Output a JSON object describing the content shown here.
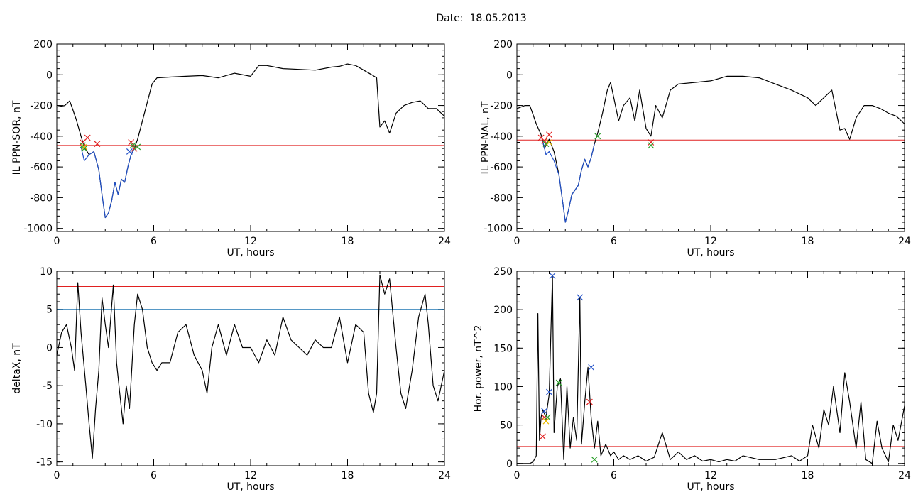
{
  "title": "Date:  18.05.2013",
  "chart_data": [
    {
      "type": "line",
      "ylabel": "IL PPN-SOR, nT",
      "xlabel": "UT, hours",
      "xlim": [
        0,
        24
      ],
      "ylim": [
        -1020,
        200
      ],
      "xticks": [
        0,
        6,
        12,
        18,
        24
      ],
      "yticks": [
        -1000,
        -800,
        -600,
        -400,
        -200,
        0,
        200
      ],
      "xtick_labels": [
        "0",
        "6",
        "12",
        "18",
        "24"
      ],
      "ytick_labels": [
        "-1000",
        "-800",
        "-600",
        "-400",
        "-200",
        "0",
        "200"
      ],
      "threshold": {
        "value": -460,
        "color": "#e02020"
      },
      "series": [
        {
          "color": "#000000",
          "x": [
            0,
            0.5,
            0.8,
            1.0,
            1.2,
            1.5,
            1.7,
            2.0,
            2.3,
            2.6,
            2.8,
            3.0,
            3.2,
            3.4,
            3.6,
            3.8,
            4.0,
            4.2,
            4.4,
            4.6,
            4.8,
            5.0,
            5.3,
            5.6,
            5.9,
            6.2,
            7.0,
            8.0,
            9.0,
            10.0,
            11.0,
            12.0,
            12.5,
            13.0,
            14.0,
            15.0,
            16.0,
            17.0,
            17.5,
            18.0,
            18.5,
            19.0,
            19.5,
            19.8,
            20.0,
            20.3,
            20.6,
            21.0,
            21.5,
            22.0,
            22.5,
            23.0,
            23.5,
            24.0
          ],
          "y": [
            -210,
            -200,
            -170,
            -230,
            -290,
            -400,
            -470,
            -520,
            -500,
            -620,
            -780,
            -930,
            -900,
            -820,
            -700,
            -780,
            -680,
            -700,
            -600,
            -520,
            -480,
            -420,
            -300,
            -180,
            -60,
            -20,
            -15,
            -10,
            -5,
            -20,
            10,
            -10,
            60,
            60,
            40,
            35,
            30,
            50,
            55,
            70,
            60,
            30,
            0,
            -20,
            -340,
            -300,
            -380,
            -250,
            -200,
            -180,
            -170,
            -220,
            -220,
            -270
          ]
        },
        {
          "color": "#2050c8",
          "x": [
            1.5,
            1.7,
            2.0,
            2.3,
            2.6,
            2.8,
            3.0,
            3.2,
            3.4,
            3.6,
            3.8,
            4.0,
            4.2,
            4.4,
            4.6,
            4.8
          ],
          "y": [
            -470,
            -560,
            -520,
            -500,
            -620,
            -780,
            -930,
            -900,
            -820,
            -700,
            -780,
            -680,
            -700,
            -600,
            -520,
            -480
          ]
        }
      ],
      "markers": [
        {
          "x": 1.6,
          "y": -440,
          "color": "#e02020"
        },
        {
          "x": 1.9,
          "y": -410,
          "color": "#e02020"
        },
        {
          "x": 2.5,
          "y": -450,
          "color": "#e02020"
        },
        {
          "x": 4.6,
          "y": -440,
          "color": "#e02020"
        },
        {
          "x": 4.8,
          "y": -480,
          "color": "#e02020"
        },
        {
          "x": 1.7,
          "y": -480,
          "color": "#2ca02c"
        },
        {
          "x": 1.6,
          "y": -460,
          "color": "#2ca02c"
        },
        {
          "x": 4.7,
          "y": -460,
          "color": "#2ca02c"
        },
        {
          "x": 5.0,
          "y": -470,
          "color": "#2ca02c"
        },
        {
          "x": 4.5,
          "y": -500,
          "color": "#2050c8"
        },
        {
          "x": 1.7,
          "y": -470,
          "color": "#e6b800"
        }
      ]
    },
    {
      "type": "line",
      "ylabel": "IL PPN-NAL, nT",
      "xlabel": "UT, hours",
      "xlim": [
        0,
        24
      ],
      "ylim": [
        -1020,
        200
      ],
      "xticks": [
        0,
        6,
        12,
        18,
        24
      ],
      "yticks": [
        -1000,
        -800,
        -600,
        -400,
        -200,
        0,
        200
      ],
      "xtick_labels": [
        "0",
        "6",
        "12",
        "18",
        "24"
      ],
      "ytick_labels": [
        "-1000",
        "-800",
        "-600",
        "-400",
        "-200",
        "0",
        "200"
      ],
      "threshold": {
        "value": -425,
        "color": "#e02020"
      },
      "series": [
        {
          "color": "#000000",
          "x": [
            0,
            0.5,
            0.8,
            1.0,
            1.2,
            1.5,
            1.7,
            2.0,
            2.3,
            2.6,
            2.8,
            3.0,
            3.2,
            3.4,
            3.6,
            3.8,
            4.0,
            4.2,
            4.4,
            4.6,
            4.8,
            5.0,
            5.3,
            5.6,
            5.8,
            6.0,
            6.3,
            6.6,
            7.0,
            7.3,
            7.6,
            8.0,
            8.3,
            8.6,
            9.0,
            9.5,
            10.0,
            11.0,
            12.0,
            13.0,
            14.0,
            15.0,
            16.0,
            17.0,
            18.0,
            18.5,
            19.0,
            19.5,
            20.0,
            20.3,
            20.6,
            21.0,
            21.5,
            22.0,
            22.5,
            23.0,
            23.5,
            24.0
          ],
          "y": [
            -220,
            -200,
            -200,
            -260,
            -320,
            -390,
            -480,
            -420,
            -500,
            -650,
            -800,
            -960,
            -880,
            -780,
            -750,
            -720,
            -620,
            -550,
            -600,
            -540,
            -450,
            -380,
            -250,
            -100,
            -50,
            -150,
            -300,
            -200,
            -150,
            -300,
            -100,
            -350,
            -400,
            -200,
            -280,
            -100,
            -60,
            -50,
            -40,
            -10,
            -10,
            -20,
            -60,
            -100,
            -150,
            -200,
            -150,
            -100,
            -360,
            -350,
            -420,
            -280,
            -200,
            -200,
            -220,
            -250,
            -270,
            -320
          ]
        },
        {
          "color": "#2050c8",
          "x": [
            1.6,
            1.8,
            2.0,
            2.3,
            2.6,
            2.8,
            3.0,
            3.2,
            3.4,
            3.6,
            3.8,
            4.0,
            4.2,
            4.4,
            4.6,
            4.8
          ],
          "y": [
            -430,
            -520,
            -500,
            -560,
            -650,
            -800,
            -960,
            -880,
            -780,
            -750,
            -720,
            -620,
            -550,
            -600,
            -540,
            -450
          ]
        }
      ],
      "markers": [
        {
          "x": 1.5,
          "y": -410,
          "color": "#e02020"
        },
        {
          "x": 2.0,
          "y": -390,
          "color": "#e02020"
        },
        {
          "x": 1.7,
          "y": -430,
          "color": "#e02020"
        },
        {
          "x": 8.3,
          "y": -440,
          "color": "#e02020"
        },
        {
          "x": 1.8,
          "y": -450,
          "color": "#2ca02c"
        },
        {
          "x": 5.0,
          "y": -400,
          "color": "#2ca02c"
        },
        {
          "x": 8.3,
          "y": -460,
          "color": "#2ca02c"
        },
        {
          "x": 2.0,
          "y": -440,
          "color": "#e6b800"
        }
      ]
    },
    {
      "type": "line",
      "ylabel": "deltaX, nT",
      "xlabel": "UT, hours",
      "xlim": [
        0,
        24
      ],
      "ylim": [
        -15.5,
        10
      ],
      "xticks": [
        0,
        6,
        12,
        18,
        24
      ],
      "yticks": [
        -15,
        -10,
        -5,
        0,
        5,
        10
      ],
      "xtick_labels": [
        "0",
        "6",
        "12",
        "18",
        "24"
      ],
      "ytick_labels": [
        "-15",
        "-10",
        "-5",
        "0",
        "5",
        "10"
      ],
      "thresholds": [
        {
          "value": 8,
          "color": "#e02020"
        },
        {
          "value": 5,
          "color": "#1f77b4"
        }
      ],
      "series": [
        {
          "color": "#000000",
          "x": [
            0,
            0.3,
            0.6,
            0.9,
            1.1,
            1.3,
            1.5,
            1.8,
            2.0,
            2.2,
            2.4,
            2.6,
            2.8,
            3.0,
            3.2,
            3.5,
            3.7,
            3.9,
            4.1,
            4.3,
            4.5,
            4.8,
            5.0,
            5.3,
            5.6,
            5.9,
            6.2,
            6.5,
            7.0,
            7.5,
            8.0,
            8.5,
            9.0,
            9.3,
            9.6,
            10.0,
            10.5,
            11.0,
            11.5,
            12.0,
            12.5,
            13.0,
            13.5,
            14.0,
            14.5,
            15.0,
            15.5,
            16.0,
            16.5,
            17.0,
            17.5,
            18.0,
            18.5,
            19.0,
            19.3,
            19.6,
            19.8,
            20.0,
            20.3,
            20.6,
            21.0,
            21.3,
            21.6,
            22.0,
            22.4,
            22.8,
            23.0,
            23.3,
            23.6,
            24.0
          ],
          "y": [
            -1,
            2,
            3,
            0,
            -3,
            8.5,
            2,
            -5,
            -10,
            -14.5,
            -8,
            -3,
            6.5,
            3,
            0,
            8.2,
            -2,
            -6,
            -10,
            -5,
            -8,
            3,
            7,
            5,
            0,
            -2,
            -3,
            -2,
            -2,
            2,
            3,
            -1,
            -3,
            -6,
            0,
            3,
            -1,
            3,
            0,
            0,
            -2,
            1,
            -1,
            4,
            1,
            0,
            -1,
            1,
            0,
            0,
            4,
            -2,
            3,
            2,
            -6,
            -8.5,
            -6,
            9.5,
            7,
            9,
            0,
            -6,
            -8,
            -3,
            4,
            7,
            3,
            -5,
            -7,
            -3
          ]
        }
      ]
    },
    {
      "type": "line",
      "ylabel": "Hor. power, nT^2",
      "xlabel": "UT, hours",
      "xlim": [
        0,
        24
      ],
      "ylim": [
        -3,
        250
      ],
      "xticks": [
        0,
        6,
        12,
        18,
        24
      ],
      "yticks": [
        0,
        50,
        100,
        150,
        200,
        250
      ],
      "xtick_labels": [
        "0",
        "6",
        "12",
        "18",
        "24"
      ],
      "ytick_labels": [
        "0",
        "50",
        "100",
        "150",
        "200",
        "250"
      ],
      "threshold": {
        "value": 22,
        "color": "#e02020"
      },
      "series": [
        {
          "color": "#000000",
          "x": [
            0,
            0.8,
            1.0,
            1.2,
            1.3,
            1.4,
            1.5,
            1.6,
            1.8,
            2.0,
            2.2,
            2.3,
            2.5,
            2.7,
            2.9,
            3.1,
            3.3,
            3.5,
            3.7,
            3.9,
            4.0,
            4.2,
            4.4,
            4.6,
            4.8,
            5.0,
            5.2,
            5.5,
            5.8,
            6.0,
            6.3,
            6.6,
            7.0,
            7.5,
            8.0,
            8.5,
            9.0,
            9.5,
            10.0,
            10.5,
            11.0,
            11.5,
            12.0,
            12.5,
            13.0,
            13.5,
            14.0,
            15.0,
            16.0,
            17.0,
            17.5,
            18.0,
            18.3,
            18.7,
            19.0,
            19.3,
            19.6,
            20.0,
            20.3,
            20.6,
            21.0,
            21.3,
            21.6,
            22.0,
            22.3,
            22.6,
            23.0,
            23.3,
            23.6,
            24.0
          ],
          "y": [
            0,
            0,
            2,
            10,
            195,
            30,
            60,
            70,
            60,
            90,
            245,
            40,
            100,
            110,
            5,
            100,
            20,
            60,
            30,
            216,
            25,
            80,
            125,
            60,
            20,
            55,
            10,
            25,
            10,
            15,
            5,
            10,
            5,
            10,
            3,
            8,
            40,
            5,
            15,
            5,
            10,
            3,
            5,
            2,
            5,
            3,
            10,
            5,
            5,
            10,
            3,
            10,
            50,
            20,
            70,
            50,
            100,
            40,
            118,
            80,
            20,
            80,
            5,
            0,
            55,
            20,
            2,
            50,
            30,
            75
          ]
        }
      ],
      "markers": [
        {
          "x": 1.6,
          "y": 35,
          "color": "#e02020"
        },
        {
          "x": 1.7,
          "y": 60,
          "color": "#e02020"
        },
        {
          "x": 4.5,
          "y": 80,
          "color": "#e02020"
        },
        {
          "x": 1.8,
          "y": 55,
          "color": "#e6b800"
        },
        {
          "x": 1.9,
          "y": 60,
          "color": "#2ca02c"
        },
        {
          "x": 2.6,
          "y": 105,
          "color": "#2ca02c"
        },
        {
          "x": 4.8,
          "y": 5,
          "color": "#2ca02c"
        },
        {
          "x": 1.7,
          "y": 68,
          "color": "#2050c8"
        },
        {
          "x": 2.0,
          "y": 93,
          "color": "#2050c8"
        },
        {
          "x": 2.2,
          "y": 244,
          "color": "#2050c8"
        },
        {
          "x": 3.9,
          "y": 216,
          "color": "#2050c8"
        },
        {
          "x": 4.6,
          "y": 125,
          "color": "#2050c8"
        }
      ]
    }
  ]
}
